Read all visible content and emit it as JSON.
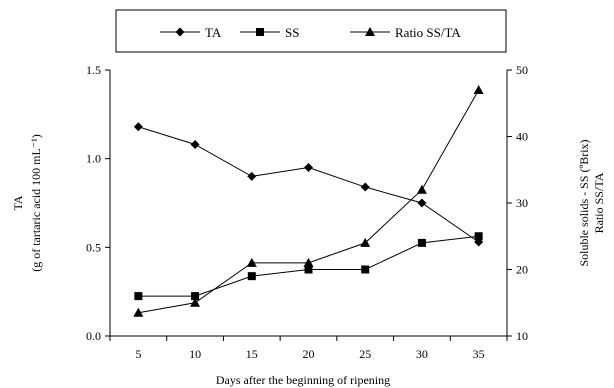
{
  "chart_data": {
    "type": "line",
    "x": [
      5,
      10,
      15,
      20,
      25,
      30,
      35
    ],
    "xlabel": "Days after the beginning of ripening",
    "xlim": [
      2.5,
      37.5
    ],
    "x_ticks": [
      "5",
      "10",
      "15",
      "20",
      "25",
      "30",
      "35"
    ],
    "left_axis": {
      "title_line1": "TA",
      "title_line2": "(g of tartaric acid  100 mL⁻¹)",
      "ylim": [
        0.0,
        1.5
      ],
      "ticks": [
        "0.0",
        "0.5",
        "1.0",
        "1.5"
      ]
    },
    "right_axis": {
      "title_line1": "Soluble solids - SS (ºBrix)",
      "title_line2": "Ratio SS/TA",
      "ylim": [
        10,
        50
      ],
      "ticks": [
        "10",
        "20",
        "30",
        "40",
        "50"
      ]
    },
    "series": [
      {
        "name": "TA",
        "axis": "left",
        "marker": "diamond",
        "values": [
          1.18,
          1.08,
          0.9,
          0.95,
          0.84,
          0.75,
          0.53
        ]
      },
      {
        "name": "SS",
        "axis": "right",
        "marker": "square",
        "values": [
          16,
          16,
          19,
          20,
          20,
          24,
          25
        ]
      },
      {
        "name": "Ratio SS/TA",
        "axis": "right",
        "marker": "triangle",
        "values": [
          13.5,
          15,
          21,
          21,
          24,
          32,
          47
        ]
      }
    ],
    "legend_position": "top",
    "grid": false,
    "colors": {
      "line": "#000000",
      "marker": "#000000"
    }
  }
}
